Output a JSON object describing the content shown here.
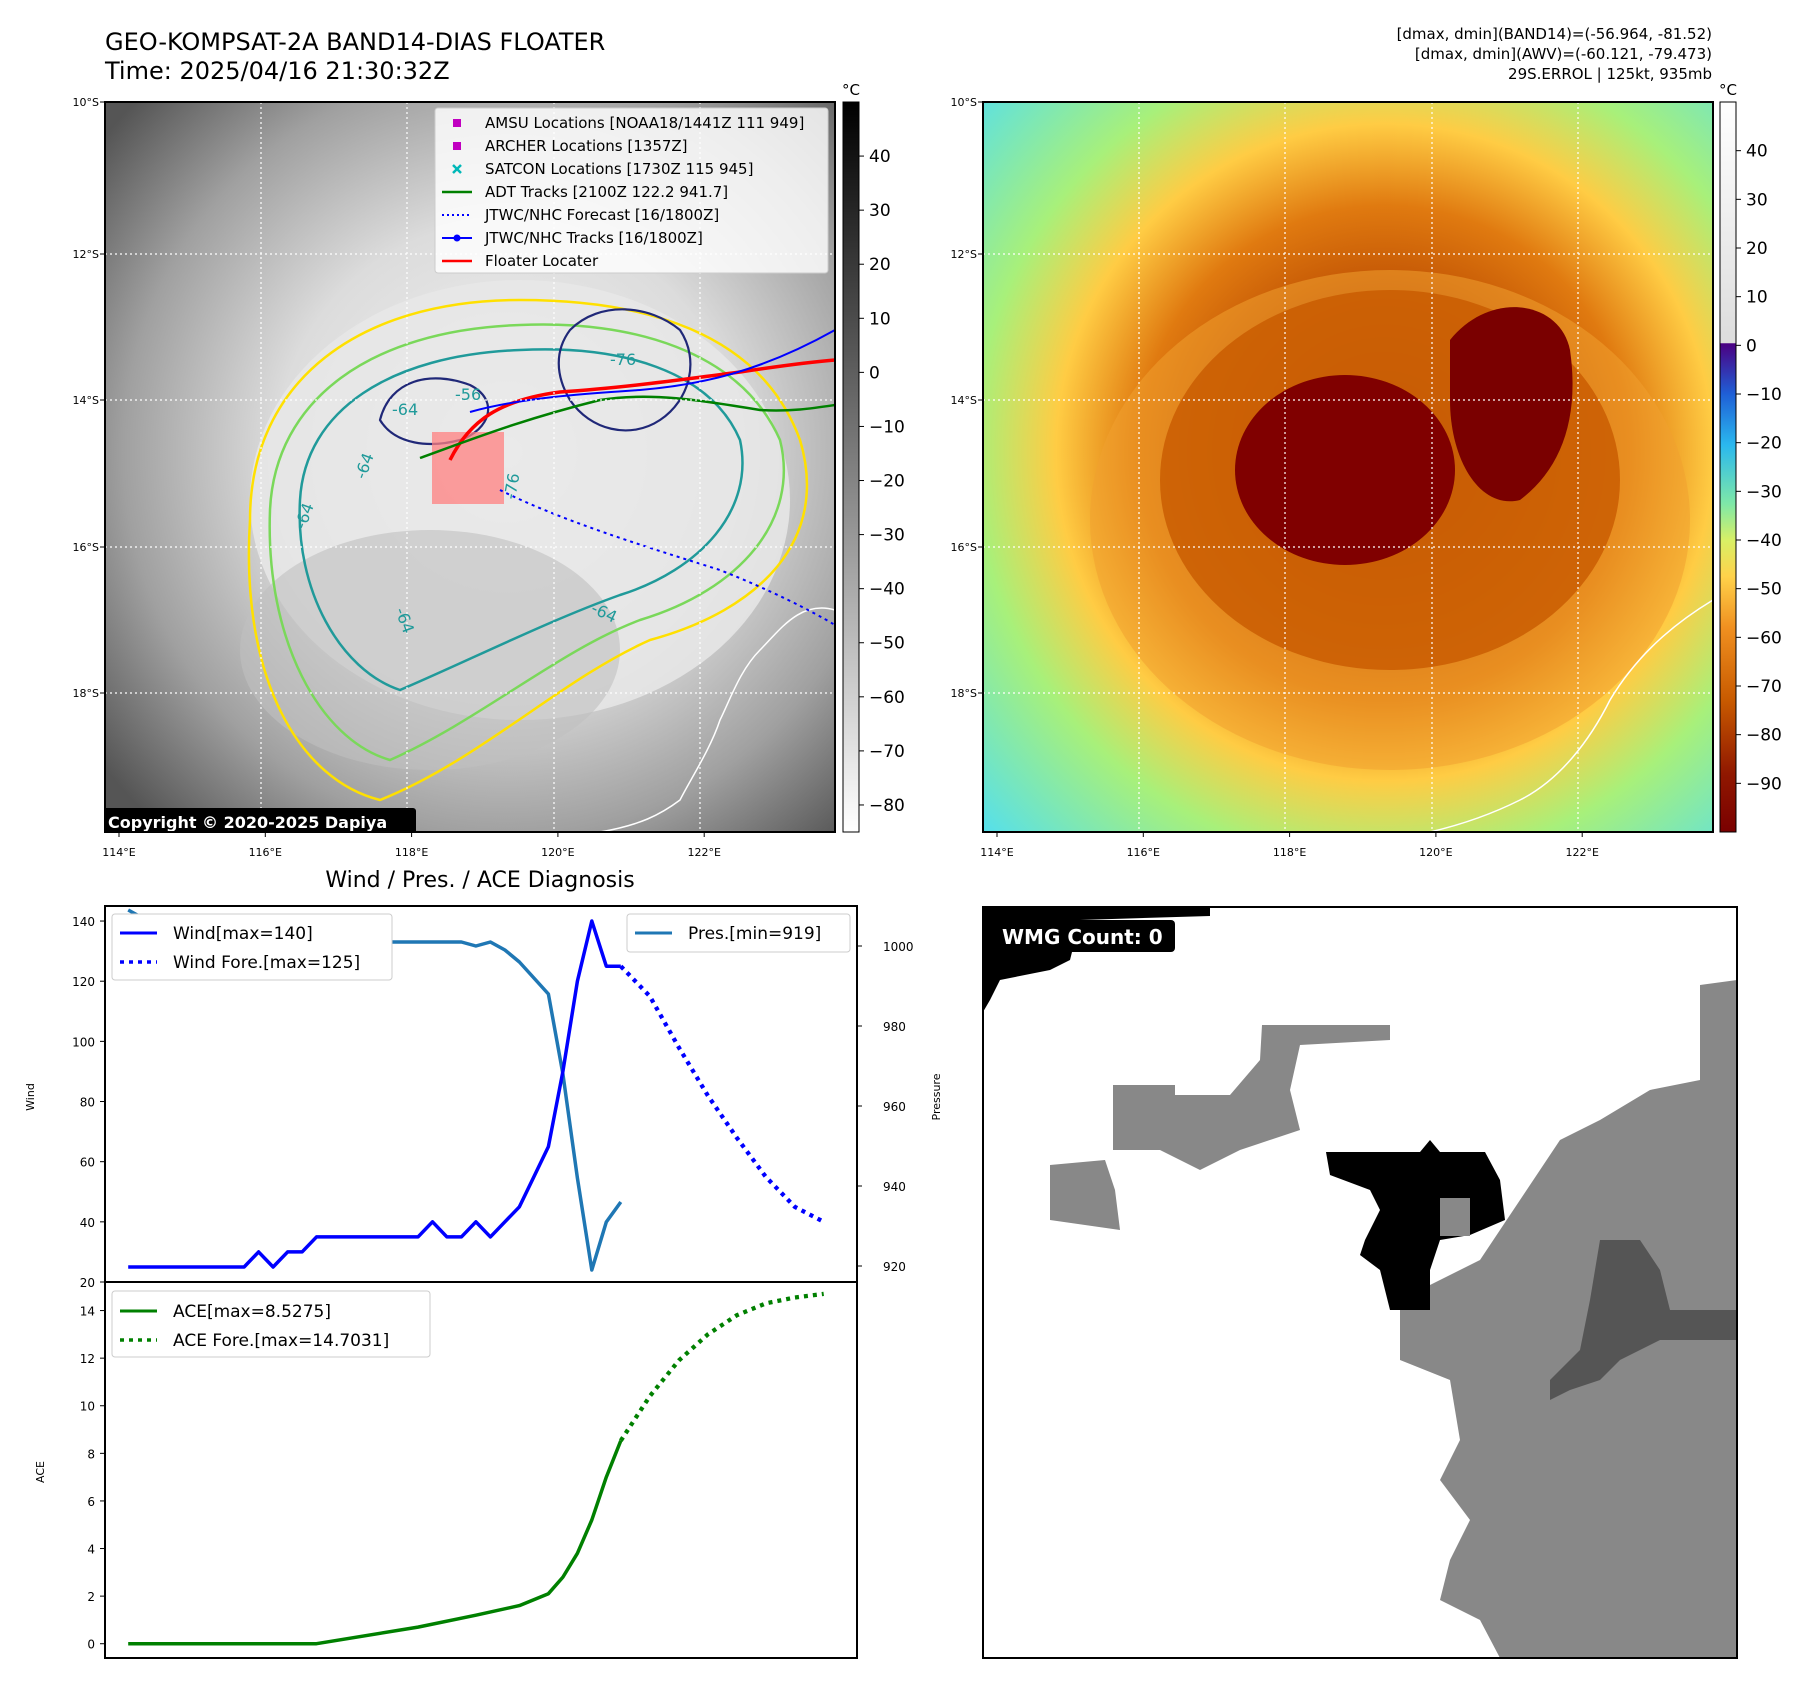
{
  "header": {
    "title_line1": "GEO-KOMPSAT-2A BAND14-DIAS FLOATER",
    "title_line2": "Time: 2025/04/16 21:30:32Z",
    "stats_line1": "[dmax, dmin](BAND14)=(-56.964, -81.52)",
    "stats_line2": "[dmax, dmin](AWV)=(-60.121, -79.473)",
    "stats_line3": "29S.ERROL | 125kt, 935mb"
  },
  "maps": {
    "lat_labels": [
      "10°S",
      "12°S",
      "14°S",
      "16°S",
      "18°S"
    ],
    "lon_labels": [
      "114°E",
      "116°E",
      "118°E",
      "120°E",
      "122°E"
    ],
    "contour_labels": [
      "-64",
      "-64",
      "-64",
      "-76",
      "-64",
      "-64",
      "-56",
      "-76"
    ],
    "copyright": "Copyright © 2020-2025 Dapiya",
    "colorbar_unit": "°C",
    "left_colorbar_ticks": [
      "40",
      "30",
      "20",
      "10",
      "0",
      "−10",
      "−20",
      "−30",
      "−40",
      "−50",
      "−60",
      "−70",
      "−80"
    ],
    "right_colorbar_ticks": [
      "40",
      "30",
      "20",
      "10",
      "0",
      "−10",
      "−20",
      "−30",
      "−40",
      "−50",
      "−60",
      "−70",
      "−80",
      "−90"
    ],
    "legend": [
      {
        "label": "AMSU Locations [NOAA18/1441Z 111 949]",
        "color": "#c000c0",
        "marker": "square"
      },
      {
        "label": "ARCHER Locations [1357Z]",
        "color": "#c000c0",
        "marker": "square"
      },
      {
        "label": "SATCON Locations [1730Z 115 945]",
        "color": "#00b8b8",
        "marker": "x"
      },
      {
        "label": "ADT Tracks [2100Z 122.2 941.7]",
        "color": "#008000",
        "marker": "line"
      },
      {
        "label": "JTWC/NHC Forecast [16/1800Z]",
        "color": "#0000ff",
        "marker": "dotted"
      },
      {
        "label": "JTWC/NHC Tracks [16/1800Z]",
        "color": "#0000ff",
        "marker": "line-dot"
      },
      {
        "label": "Floater Locater",
        "color": "#ff0000",
        "marker": "line"
      }
    ]
  },
  "diagnosis": {
    "title": "Wind / Pres. / ACE Diagnosis",
    "wind_ylabel": "Wind",
    "pres_ylabel": "Pressure",
    "ace_ylabel": "ACE",
    "wind_ticks": [
      "20",
      "40",
      "60",
      "80",
      "100",
      "120",
      "140"
    ],
    "pres_ticks": [
      "920",
      "940",
      "960",
      "980",
      "1000"
    ],
    "ace_ticks": [
      "0",
      "2",
      "4",
      "6",
      "8",
      "10",
      "12",
      "14"
    ],
    "legend_wind": "Wind[max=140]",
    "legend_wind_fore": "Wind Fore.[max=125]",
    "legend_pres": "Pres.[min=919]",
    "legend_ace": "ACE[max=8.5275]",
    "legend_ace_fore": "ACE Fore.[max=14.7031]"
  },
  "wmg": {
    "label": "WMG Count: 0"
  },
  "chart_data": [
    {
      "type": "line",
      "title": "Wind / Pres. / ACE Diagnosis",
      "ylabel": "Wind",
      "ylim": [
        20,
        145
      ],
      "series": [
        {
          "name": "Wind[max=140]",
          "color": "#0000ff",
          "style": "solid",
          "x": [
            0,
            1,
            2,
            3,
            4,
            5,
            6,
            7,
            8,
            9,
            10,
            11,
            12,
            13,
            14,
            15,
            16,
            17,
            18,
            19,
            20,
            21,
            22,
            23,
            24,
            25,
            26,
            27,
            28,
            29,
            30,
            31,
            32,
            33,
            34
          ],
          "values": [
            25,
            25,
            25,
            25,
            25,
            25,
            25,
            25,
            25,
            30,
            25,
            30,
            30,
            35,
            35,
            35,
            35,
            35,
            35,
            35,
            35,
            40,
            35,
            35,
            40,
            35,
            40,
            45,
            55,
            65,
            90,
            120,
            140,
            125,
            125
          ]
        },
        {
          "name": "Wind Fore.[max=125]",
          "color": "#0000ff",
          "style": "dotted",
          "x": [
            34,
            36,
            38,
            40,
            42,
            44,
            46,
            48
          ],
          "values": [
            125,
            115,
            98,
            82,
            68,
            55,
            45,
            40
          ]
        }
      ]
    },
    {
      "type": "line",
      "ylabel": "Pressure",
      "ylim": [
        916,
        1010
      ],
      "series": [
        {
          "name": "Pres.[min=919]",
          "color": "#1f77b4",
          "style": "solid",
          "x": [
            0,
            1,
            2,
            3,
            4,
            5,
            6,
            7,
            8,
            9,
            10,
            11,
            12,
            13,
            14,
            15,
            16,
            17,
            18,
            19,
            20,
            21,
            22,
            23,
            24,
            25,
            26,
            27,
            28,
            29,
            30,
            31,
            32,
            33,
            34
          ],
          "values": [
            1009,
            1007,
            1007,
            1005,
            1004,
            1002,
            1001,
            1002,
            1001,
            1001,
            1001,
            1001,
            1001,
            1001,
            1001,
            1001,
            1001,
            1001,
            1001,
            1001,
            1001,
            1001,
            1001,
            1001,
            1000,
            1001,
            999,
            996,
            992,
            988,
            968,
            942,
            919,
            931,
            936
          ]
        }
      ]
    },
    {
      "type": "line",
      "ylabel": "ACE",
      "ylim": [
        -0.6,
        15.2
      ],
      "series": [
        {
          "name": "ACE[max=8.5275]",
          "color": "#008000",
          "style": "solid",
          "x": [
            0,
            13,
            20,
            24,
            27,
            29,
            30,
            31,
            32,
            33,
            34
          ],
          "values": [
            0,
            0,
            0.7,
            1.2,
            1.6,
            2.1,
            2.8,
            3.8,
            5.2,
            7.0,
            8.53
          ]
        },
        {
          "name": "ACE Fore.[max=14.7031]",
          "color": "#008000",
          "style": "dotted",
          "x": [
            34,
            36,
            38,
            40,
            42,
            44,
            46,
            48
          ],
          "values": [
            8.53,
            10.4,
            11.9,
            13.0,
            13.8,
            14.3,
            14.55,
            14.7
          ]
        }
      ]
    }
  ]
}
